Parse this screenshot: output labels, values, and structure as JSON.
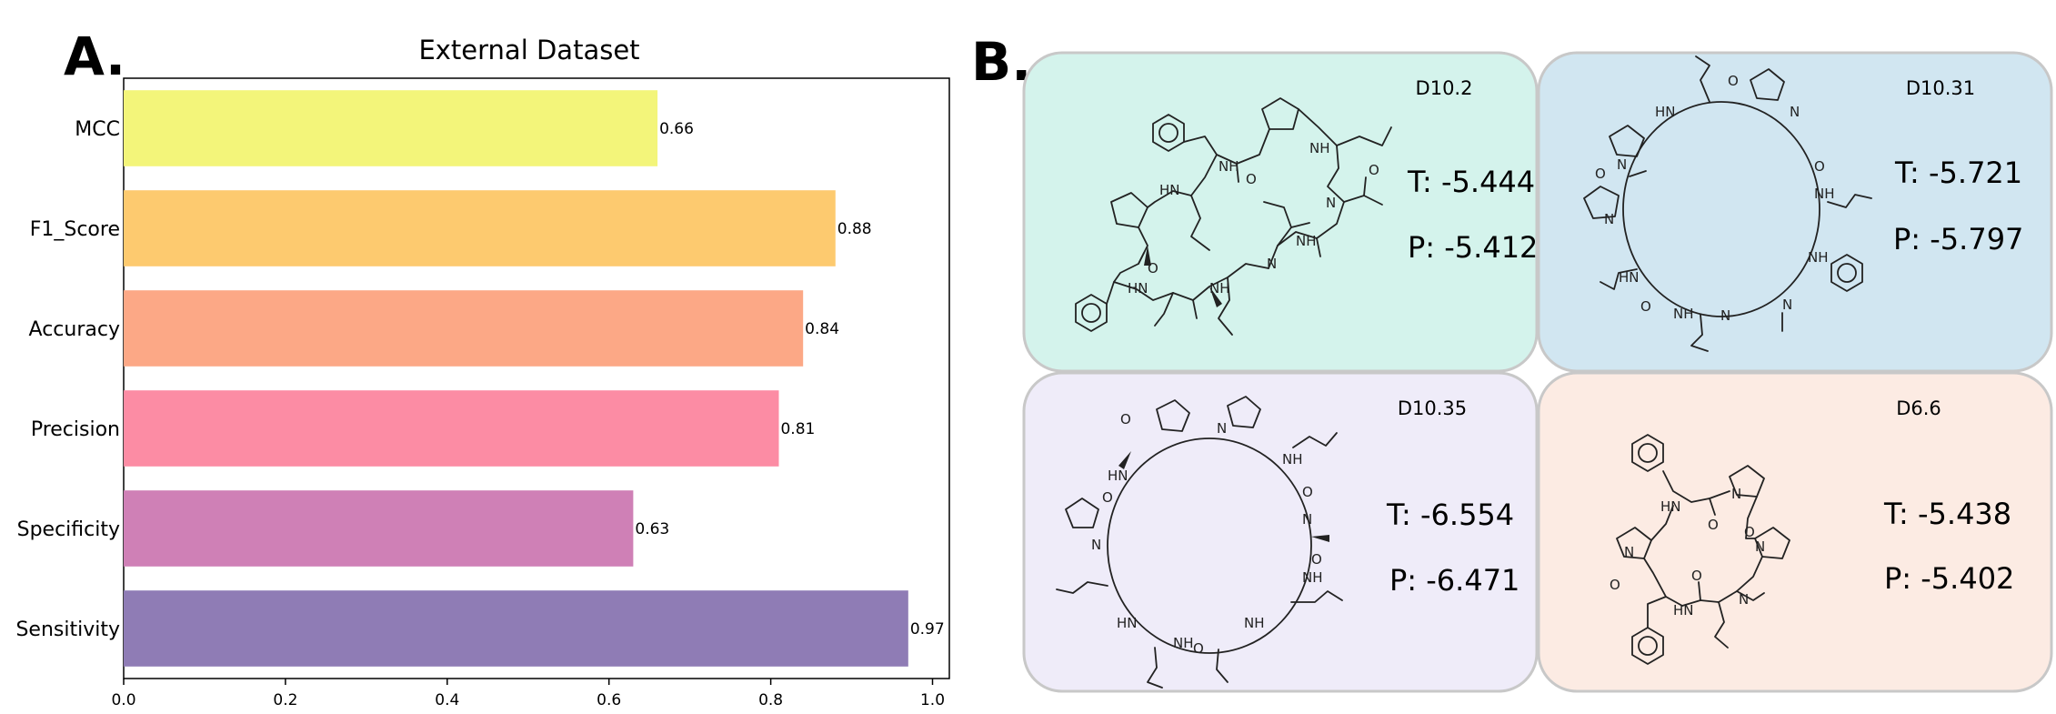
{
  "panel_a": {
    "letter": "A."
  },
  "panel_b": {
    "letter": "B."
  },
  "chart_data": {
    "type": "bar",
    "orientation": "horizontal",
    "title": "External Dataset",
    "categories": [
      "MCC",
      "F1_Score",
      "Accuracy",
      "Precision",
      "Specificity",
      "Sensitivity"
    ],
    "values": [
      0.66,
      0.88,
      0.84,
      0.81,
      0.63,
      0.97
    ],
    "value_labels": [
      "0.66",
      "0.88",
      "0.84",
      "0.81",
      "0.63",
      "0.97"
    ],
    "colors": [
      "#f3f57a",
      "#fdca6f",
      "#fca886",
      "#fc8ca4",
      "#cf80b6",
      "#8f7cb5"
    ],
    "xlim": [
      0.0,
      1.02
    ],
    "xticks": [
      "0.0",
      "0.2",
      "0.4",
      "0.6",
      "0.8",
      "1.0"
    ],
    "xtick_values": [
      0.0,
      0.2,
      0.4,
      0.6,
      0.8,
      1.0
    ],
    "grid": false,
    "xlabel": "",
    "ylabel": ""
  },
  "molecules": [
    {
      "id": "D10.2",
      "t_score": "T: -5.444",
      "p_score": "P: -5.412",
      "background": "#d4f3ec",
      "structure": "cyclic-peptide-icon"
    },
    {
      "id": "D10.31",
      "t_score": "T: -5.721",
      "p_score": "P: -5.797",
      "background": "#d1e6f1",
      "structure": "cyclic-peptide-icon"
    },
    {
      "id": "D10.35",
      "t_score": "T: -6.554",
      "p_score": "P: -6.471",
      "background": "#efecf9",
      "structure": "cyclic-peptide-icon"
    },
    {
      "id": "D6.6",
      "t_score": "T: -5.438",
      "p_score": "P: -5.402",
      "background": "#fcebe3",
      "structure": "cyclic-peptide-icon"
    }
  ]
}
